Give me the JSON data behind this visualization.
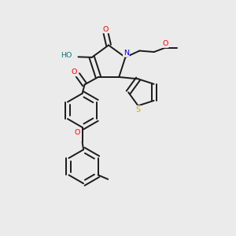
{
  "bg_color": "#ebebeb",
  "bond_color": "#1a1a1a",
  "atom_colors": {
    "O": "#ff0000",
    "N": "#0000ff",
    "S": "#ccaa00",
    "HO": "#008080",
    "C": "#1a1a1a"
  },
  "figsize": [
    3.0,
    3.0
  ],
  "dpi": 100
}
